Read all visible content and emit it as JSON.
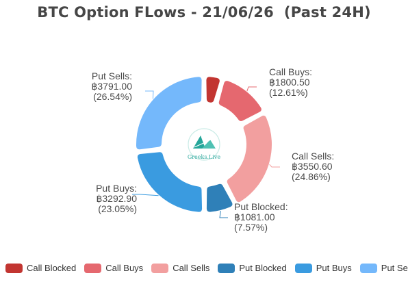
{
  "chart_title": "BTC Option FLows - 21/06/26  (Past 24H)",
  "watermark_text": "Greeks.Live",
  "colors": {
    "call_blocked": "#c23531",
    "call_buys": "#e5686f",
    "call_sells": "#f29f9f",
    "put_blocked": "#2f80b8",
    "put_buys": "#3a9be0",
    "put_sells": "#74b8fb",
    "logo": "#26a69a"
  },
  "chart_data": {
    "type": "pie",
    "donut": true,
    "title": "BTC Option FLows - 21/06/26  (Past 24H)",
    "legend_position": "bottom",
    "slices": [
      {
        "name": "Call Blocked",
        "value": 628.42,
        "percent": "4.40",
        "amount": "",
        "labeled": false,
        "color_key": "call_blocked"
      },
      {
        "name": "Call Buys",
        "value": 1800.5,
        "percent": "12.61",
        "amount": "฿1800.50",
        "labeled": true,
        "color_key": "call_buys"
      },
      {
        "name": "Call Sells",
        "value": 3550.6,
        "percent": "24.86",
        "amount": "฿3550.60",
        "labeled": true,
        "color_key": "call_sells"
      },
      {
        "name": "Put Blocked",
        "value": 1081.0,
        "percent": "7.57",
        "amount": "฿1081.00",
        "labeled": true,
        "color_key": "put_blocked"
      },
      {
        "name": "Put Buys",
        "value": 3292.9,
        "percent": "23.05",
        "amount": "฿3292.90",
        "labeled": true,
        "color_key": "put_buys"
      },
      {
        "name": "Put Sells",
        "value": 3791.0,
        "percent": "26.54",
        "amount": "฿3791.00",
        "labeled": true,
        "color_key": "put_sells"
      }
    ]
  },
  "legend": {
    "items": [
      {
        "label": "Call Blocked",
        "color_key": "call_blocked"
      },
      {
        "label": "Call Buys",
        "color_key": "call_buys"
      },
      {
        "label": "Call Sells",
        "color_key": "call_sells"
      },
      {
        "label": "Put Blocked",
        "color_key": "put_blocked"
      },
      {
        "label": "Put Buys",
        "color_key": "put_buys"
      },
      {
        "label": "Put Sells",
        "color_key": "put_sells"
      }
    ]
  }
}
